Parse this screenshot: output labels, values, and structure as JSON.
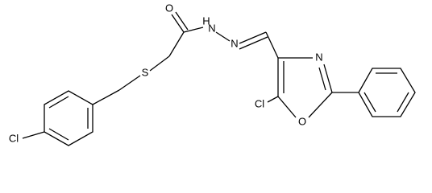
{
  "atoms": [
    {
      "label": "Cl"
    },
    {
      "label": "S"
    },
    {
      "label": "O"
    },
    {
      "label": "H"
    },
    {
      "label": "N"
    },
    {
      "label": "N"
    },
    {
      "label": "N"
    },
    {
      "label": "Cl"
    },
    {
      "label": "O"
    }
  ]
}
